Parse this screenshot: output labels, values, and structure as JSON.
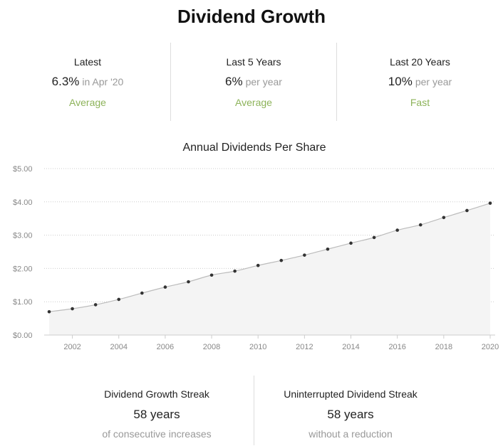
{
  "title": "Dividend Growth",
  "stats": [
    {
      "label": "Latest",
      "value": "6.3%",
      "sub": "in Apr '20",
      "class": "Average"
    },
    {
      "label": "Last 5 Years",
      "value": "6%",
      "sub": "per year",
      "class": "Average"
    },
    {
      "label": "Last 20 Years",
      "value": "10%",
      "sub": "per year",
      "class": "Fast"
    }
  ],
  "colors": {
    "accent": "#8db35a",
    "line": "#bbbbbb",
    "fill": "#f4f4f4",
    "point": "#333333",
    "grid": "#cccccc"
  },
  "chart_data": {
    "type": "area",
    "title": "Annual Dividends Per Share",
    "xlabel": "",
    "ylabel": "",
    "x": [
      2001,
      2002,
      2003,
      2004,
      2005,
      2006,
      2007,
      2008,
      2009,
      2010,
      2011,
      2012,
      2013,
      2014,
      2015,
      2016,
      2017,
      2018,
      2019,
      2020
    ],
    "values": [
      0.7,
      0.79,
      0.91,
      1.07,
      1.26,
      1.44,
      1.6,
      1.8,
      1.92,
      2.09,
      2.24,
      2.4,
      2.58,
      2.76,
      2.93,
      3.15,
      3.31,
      3.53,
      3.74,
      3.96
    ],
    "xticks": [
      "2002",
      "2004",
      "2006",
      "2008",
      "2010",
      "2012",
      "2014",
      "2016",
      "2018",
      "2020"
    ],
    "yticks": [
      "$0.00",
      "$1.00",
      "$2.00",
      "$3.00",
      "$4.00",
      "$5.00"
    ],
    "ylim": [
      0,
      5
    ],
    "grid": "dotted horizontal"
  },
  "streaks": [
    {
      "label": "Dividend Growth Streak",
      "value": "58 years",
      "sub": "of consecutive increases"
    },
    {
      "label": "Uninterrupted Dividend Streak",
      "value": "58 years",
      "sub": "without a reduction"
    }
  ]
}
